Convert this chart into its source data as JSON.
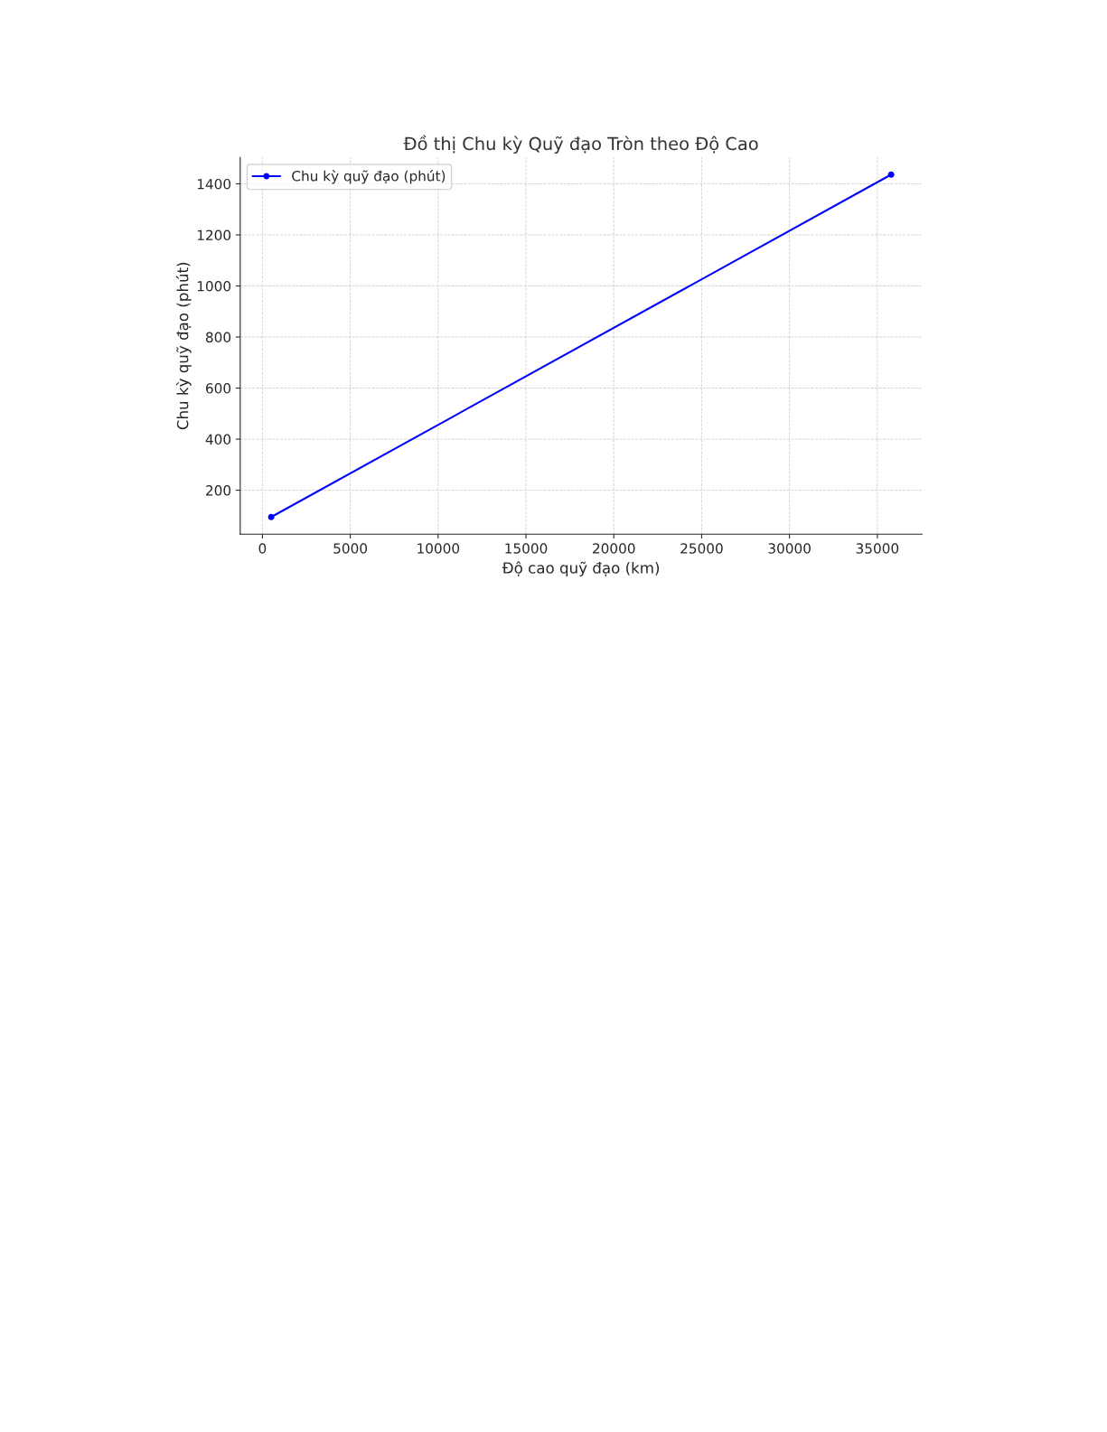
{
  "chart_data": {
    "type": "line",
    "title": "Đồ thị Chu kỳ Quỹ đạo Tròn theo Độ Cao",
    "xlabel": "Độ cao quỹ đạo (km)",
    "ylabel": "Chu kỳ quỹ đạo (phút)",
    "x": [
      500,
      35786
    ],
    "series": [
      {
        "name": "Chu kỳ quỹ đạo (phút)",
        "color": "#0000ff",
        "values": [
          95,
          1436
        ]
      }
    ],
    "xlim": [
      -1264,
      37550
    ],
    "xticks": [
      0,
      5000,
      10000,
      15000,
      20000,
      25000,
      30000,
      35000
    ],
    "ylim": [
      28,
      1503
    ],
    "yticks": [
      200,
      400,
      600,
      800,
      1000,
      1200,
      1400
    ],
    "grid": true,
    "legend": "top left",
    "marker": "circle",
    "line_style": "solid"
  }
}
